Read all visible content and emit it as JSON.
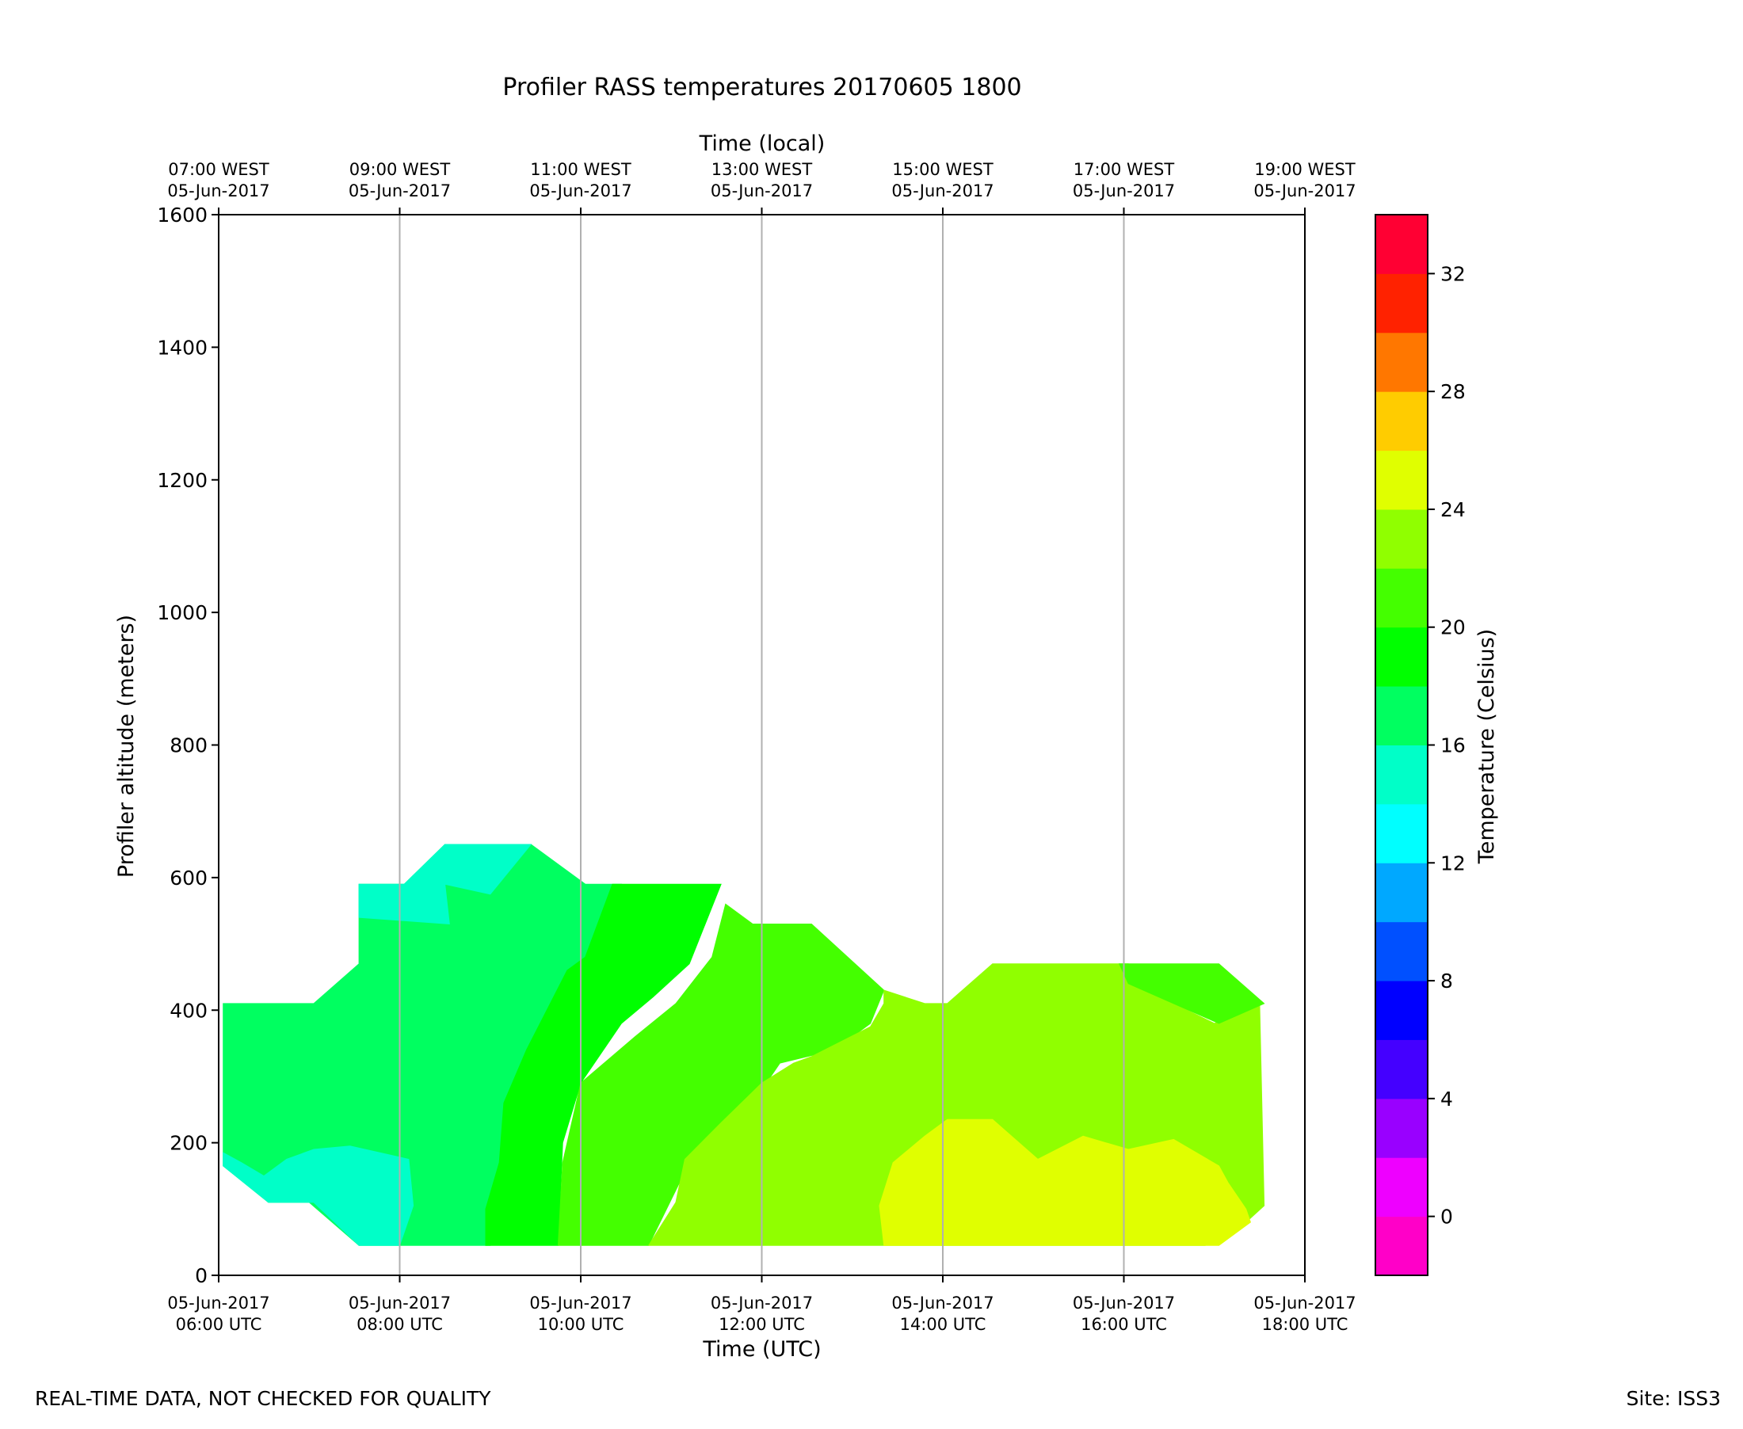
{
  "chart_data": {
    "type": "contour",
    "title": "Profiler RASS temperatures 20170605 1800",
    "xlabel": "Time (UTC)",
    "x2label": "Time (local)",
    "ylabel": "Profiler altitude (meters)",
    "colorbar_label": "Temperature (Celsius)",
    "ylim": [
      0,
      1600
    ],
    "xlim_hours_utc": [
      6,
      18
    ],
    "y_ticks": [
      0,
      200,
      400,
      600,
      800,
      1000,
      1200,
      1400,
      1600
    ],
    "y_tick_labels": [
      "0",
      "200",
      "400",
      "600",
      "800",
      "1000",
      "1200",
      "1400",
      "1600"
    ],
    "x_ticks_hours": [
      6,
      8,
      10,
      12,
      14,
      16,
      18
    ],
    "x_tick_labels": [
      [
        "05-Jun-2017",
        "06:00 UTC"
      ],
      [
        "05-Jun-2017",
        "08:00 UTC"
      ],
      [
        "05-Jun-2017",
        "10:00 UTC"
      ],
      [
        "05-Jun-2017",
        "12:00 UTC"
      ],
      [
        "05-Jun-2017",
        "14:00 UTC"
      ],
      [
        "05-Jun-2017",
        "16:00 UTC"
      ],
      [
        "05-Jun-2017",
        "18:00 UTC"
      ]
    ],
    "x2_tick_labels": [
      [
        "07:00 WEST",
        "05-Jun-2017"
      ],
      [
        "09:00 WEST",
        "05-Jun-2017"
      ],
      [
        "11:00 WEST",
        "05-Jun-2017"
      ],
      [
        "13:00 WEST",
        "05-Jun-2017"
      ],
      [
        "15:00 WEST",
        "05-Jun-2017"
      ],
      [
        "17:00 WEST",
        "05-Jun-2017"
      ],
      [
        "19:00 WEST",
        "05-Jun-2017"
      ]
    ],
    "grid": "vertical",
    "colorbar": {
      "range": [
        -2,
        34
      ],
      "levels": [
        -2,
        0,
        2,
        4,
        6,
        8,
        10,
        12,
        14,
        16,
        18,
        20,
        22,
        24,
        26,
        28,
        30,
        32,
        34
      ],
      "colors": [
        "#ff00c8",
        "#ee00ff",
        "#9900ff",
        "#4400ff",
        "#0000ff",
        "#0050ff",
        "#00a8ff",
        "#00ffff",
        "#00ffc8",
        "#00ff60",
        "#00ff00",
        "#44ff00",
        "#90ff00",
        "#e0ff00",
        "#ffcc00",
        "#ff7700",
        "#ff2200",
        "#ff0033"
      ],
      "ticks": [
        0,
        4,
        8,
        12,
        16,
        20,
        24,
        28,
        32
      ],
      "tick_labels": [
        "0",
        "4",
        "8",
        "12",
        "16",
        "20",
        "24",
        "28",
        "32"
      ]
    },
    "regions": [
      {
        "band": "16-18 C",
        "color": "#00ff60",
        "polygon": [
          [
            6.05,
            410
          ],
          [
            7.05,
            410
          ],
          [
            7.55,
            470
          ],
          [
            7.55,
            590
          ],
          [
            8.05,
            590
          ],
          [
            8.5,
            650
          ],
          [
            9.45,
            650
          ],
          [
            10.05,
            590
          ],
          [
            10.45,
            590
          ],
          [
            10.45,
            590
          ],
          [
            10.05,
            445
          ],
          [
            9.65,
            350
          ],
          [
            9.1,
            170
          ],
          [
            9.0,
            45
          ],
          [
            7.55,
            45
          ],
          [
            7.0,
            110
          ],
          [
            6.55,
            110
          ],
          [
            6.05,
            165
          ]
        ]
      },
      {
        "band": "14-16 C",
        "color": "#00ffc8",
        "polygon": [
          [
            7.55,
            590
          ],
          [
            8.05,
            590
          ],
          [
            8.5,
            650
          ],
          [
            9.45,
            650
          ],
          [
            9.0,
            575
          ],
          [
            8.5,
            590
          ],
          [
            8.55,
            530
          ],
          [
            7.55,
            540
          ]
        ]
      },
      {
        "band": "14-16 C",
        "color": "#00ffc8",
        "polygon": [
          [
            6.05,
            185
          ],
          [
            6.25,
            170
          ],
          [
            6.5,
            150
          ],
          [
            6.75,
            175
          ],
          [
            7.05,
            190
          ],
          [
            7.45,
            195
          ],
          [
            8.1,
            175
          ],
          [
            8.15,
            105
          ],
          [
            8.0,
            45
          ],
          [
            7.55,
            45
          ],
          [
            7.05,
            110
          ],
          [
            6.55,
            110
          ],
          [
            6.05,
            165
          ]
        ]
      },
      {
        "band": "18-20 C",
        "color": "#00ff00",
        "polygon": [
          [
            9.1,
            170
          ],
          [
            9.15,
            260
          ],
          [
            9.4,
            340
          ],
          [
            9.85,
            460
          ],
          [
            10.05,
            480
          ],
          [
            10.35,
            590
          ],
          [
            11.55,
            590
          ],
          [
            11.2,
            470
          ],
          [
            10.8,
            420
          ],
          [
            10.45,
            380
          ],
          [
            10.0,
            290
          ],
          [
            9.8,
            200
          ],
          [
            9.75,
            45
          ],
          [
            8.95,
            45
          ],
          [
            8.95,
            100
          ]
        ]
      },
      {
        "band": "20-22 C",
        "color": "#44ff00",
        "polygon": [
          [
            9.75,
            45
          ],
          [
            9.8,
            170
          ],
          [
            10.0,
            290
          ],
          [
            10.6,
            360
          ],
          [
            11.05,
            410
          ],
          [
            11.45,
            480
          ],
          [
            11.6,
            560
          ],
          [
            11.9,
            530
          ],
          [
            12.55,
            530
          ],
          [
            13.35,
            430
          ],
          [
            13.2,
            380
          ],
          [
            12.8,
            340
          ],
          [
            12.2,
            320
          ],
          [
            11.8,
            240
          ],
          [
            11.2,
            170
          ],
          [
            10.75,
            45
          ]
        ]
      },
      {
        "band": "22-24 C",
        "color": "#90ff00",
        "polygon": [
          [
            10.75,
            45
          ],
          [
            11.05,
            110
          ],
          [
            11.15,
            175
          ],
          [
            11.55,
            230
          ],
          [
            12.0,
            290
          ],
          [
            12.35,
            320
          ],
          [
            12.55,
            330
          ],
          [
            13.2,
            375
          ],
          [
            13.35,
            410
          ],
          [
            13.35,
            430
          ],
          [
            13.8,
            410
          ],
          [
            14.05,
            410
          ],
          [
            14.55,
            470
          ],
          [
            16.05,
            470
          ],
          [
            16.1,
            440
          ],
          [
            17.0,
            380
          ],
          [
            17.5,
            410
          ],
          [
            17.55,
            105
          ],
          [
            17.35,
            80
          ],
          [
            16.9,
            45
          ],
          [
            13.35,
            45
          ]
        ]
      },
      {
        "band": "20-22 C",
        "color": "#44ff00",
        "polygon": [
          [
            15.95,
            470
          ],
          [
            17.05,
            470
          ],
          [
            17.55,
            410
          ],
          [
            17.05,
            380
          ],
          [
            16.05,
            440
          ]
        ]
      },
      {
        "band": "24-26 C",
        "color": "#e0ff00",
        "polygon": [
          [
            13.35,
            45
          ],
          [
            13.3,
            105
          ],
          [
            13.45,
            170
          ],
          [
            13.8,
            210
          ],
          [
            14.05,
            235
          ],
          [
            14.55,
            235
          ],
          [
            15.05,
            175
          ],
          [
            15.55,
            210
          ],
          [
            16.05,
            190
          ],
          [
            16.55,
            205
          ],
          [
            17.05,
            165
          ],
          [
            17.15,
            140
          ],
          [
            17.35,
            100
          ],
          [
            17.4,
            80
          ],
          [
            17.05,
            45
          ]
        ]
      }
    ]
  },
  "footer": {
    "left": "REAL-TIME DATA, NOT CHECKED FOR QUALITY",
    "right": "Site: ISS3"
  }
}
